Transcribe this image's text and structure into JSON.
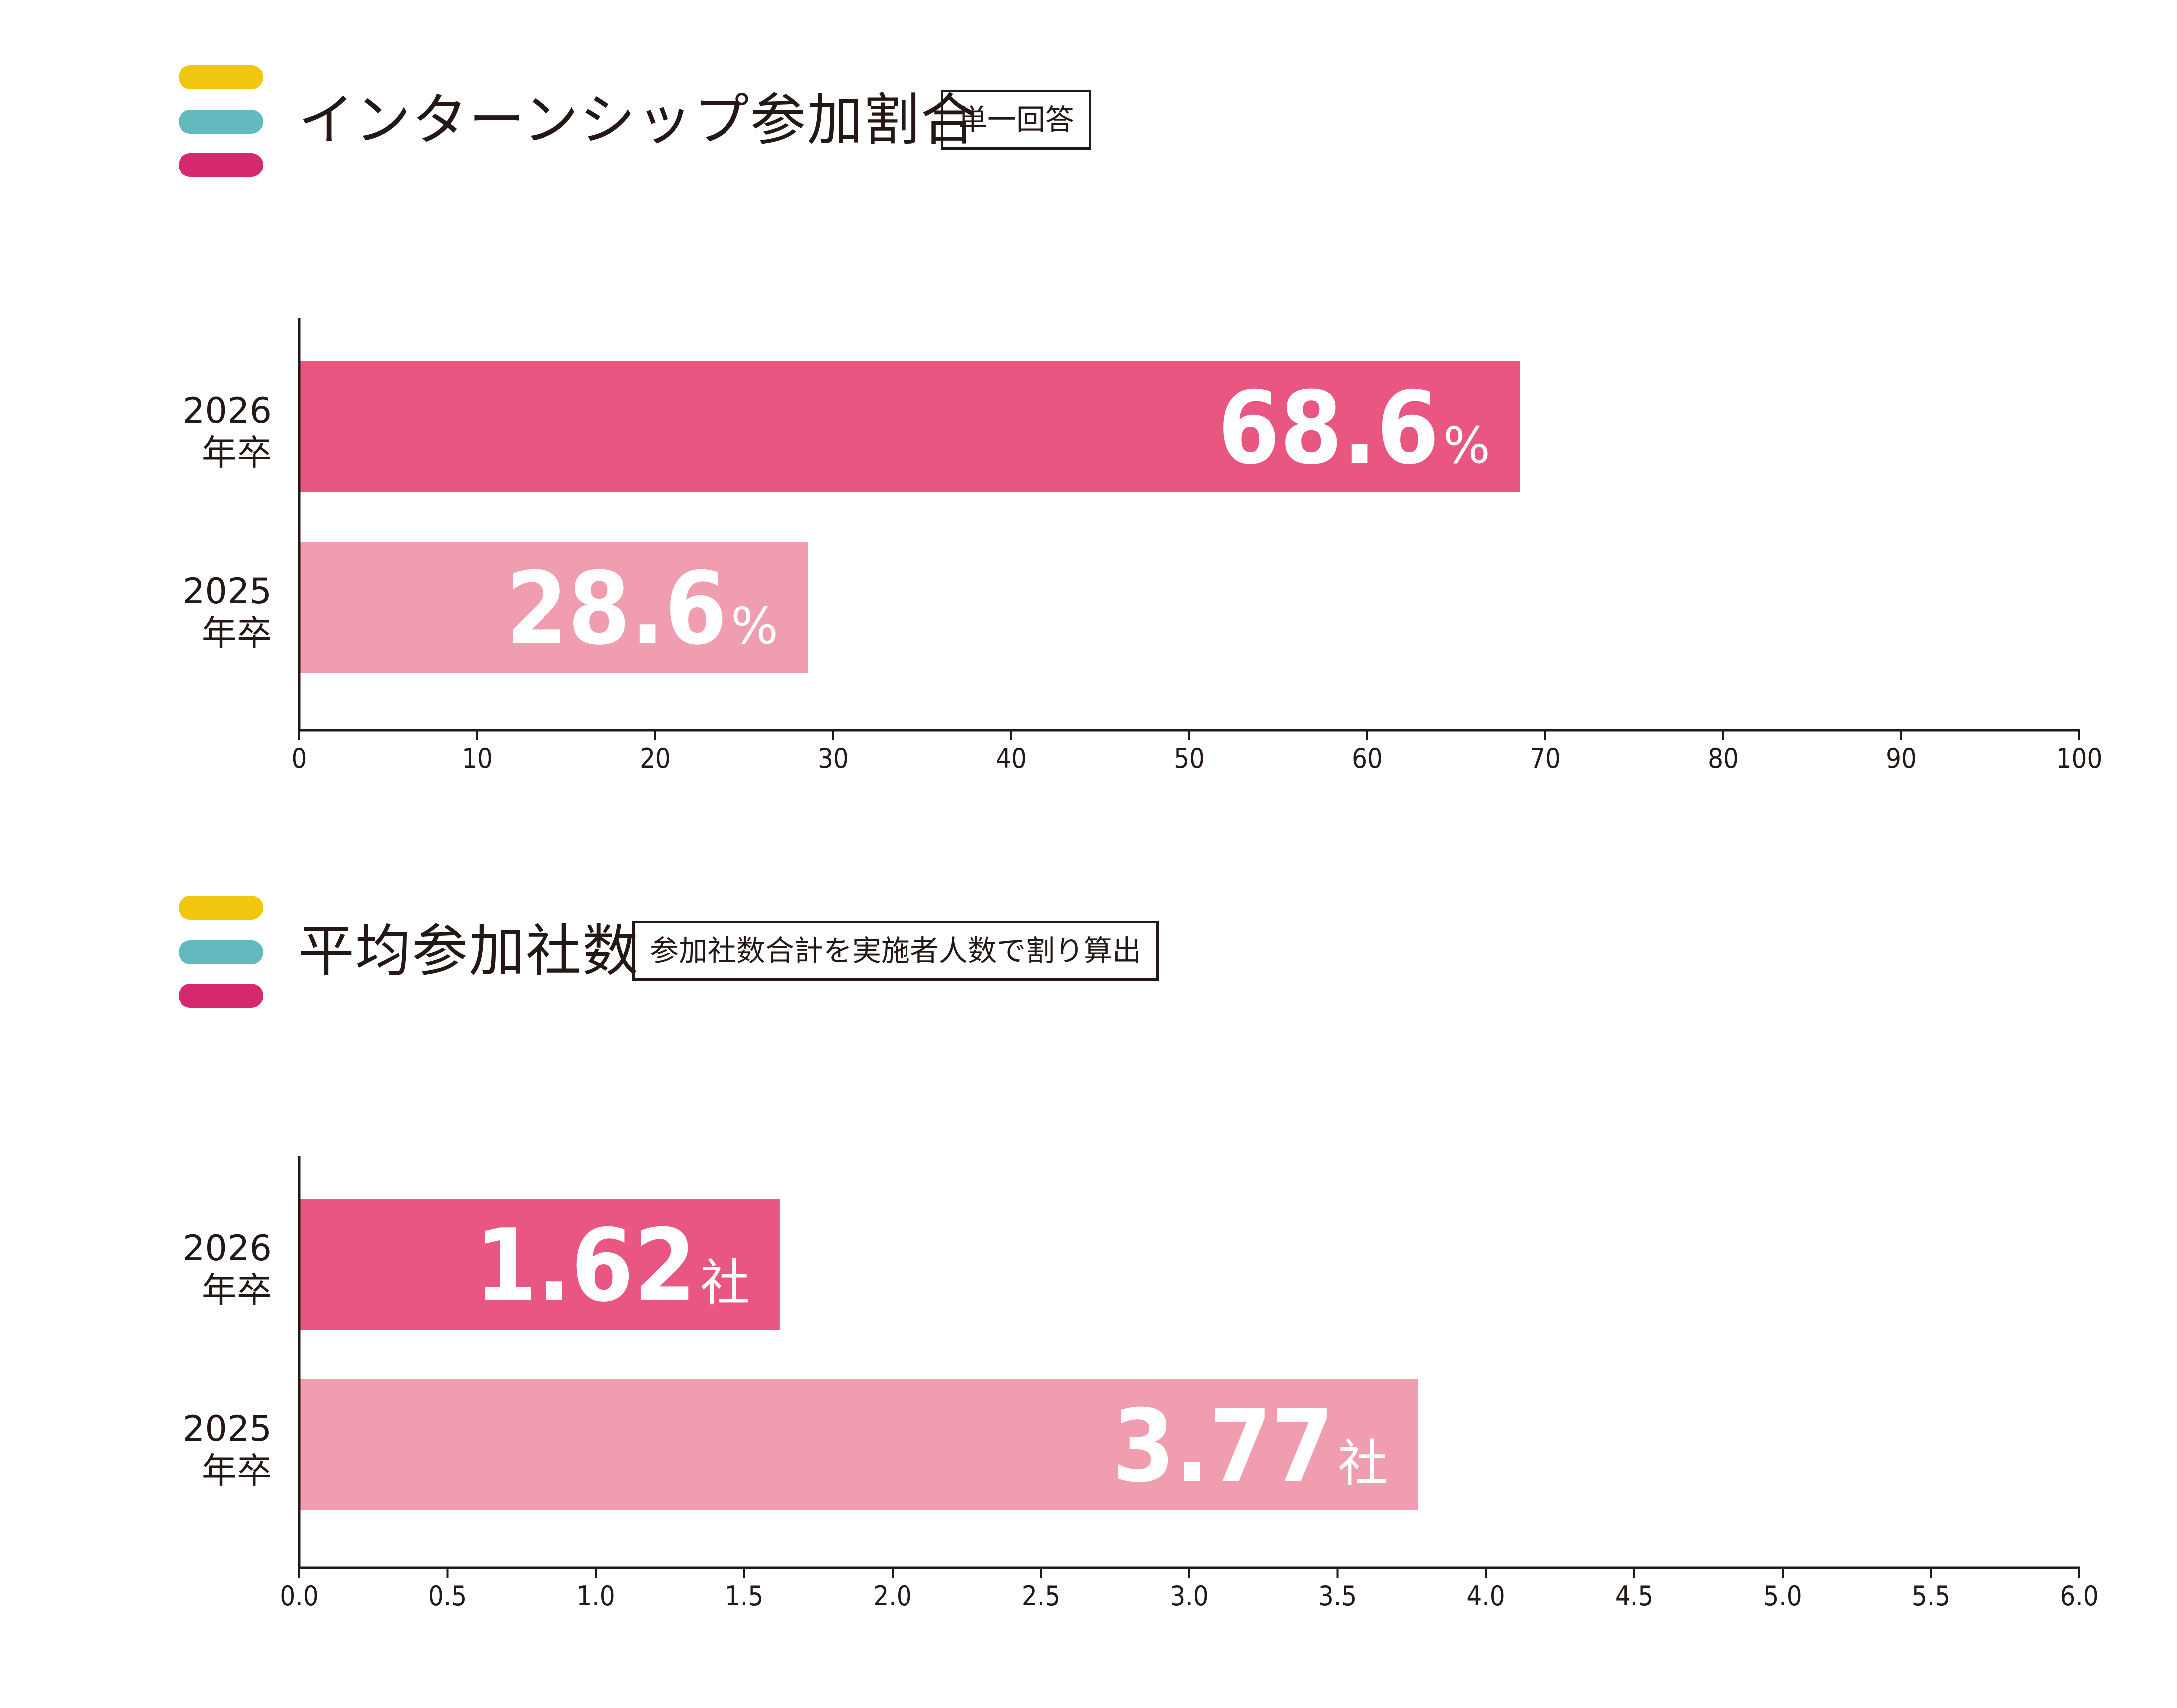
{
  "colors": {
    "pill_yellow": "#f0c70e",
    "pill_teal": "#64b9be",
    "pill_magenta": "#d6286c",
    "bar_2026": "#e95681",
    "bar_2025": "#f19db0",
    "axis": "#231815"
  },
  "sections": [
    {
      "title": "インターンシップ参加割合",
      "note": "単一回答"
    },
    {
      "title": "平均参加社数",
      "note": "参加社数合計を実施者人数で割り算出"
    }
  ],
  "chart_data": [
    {
      "type": "bar",
      "orientation": "horizontal",
      "title": "インターンシップ参加割合",
      "categories": [
        {
          "year": "2026",
          "suffix": "年卒"
        },
        {
          "year": "2025",
          "suffix": "年卒"
        }
      ],
      "values": [
        68.6,
        28.6
      ],
      "value_labels": [
        "68.6",
        "28.6"
      ],
      "unit": "%",
      "xlim": [
        0,
        100
      ],
      "ticks": [
        "0",
        "10",
        "20",
        "30",
        "40",
        "50",
        "60",
        "70",
        "80",
        "90",
        "100"
      ],
      "grid": false,
      "legend": "none"
    },
    {
      "type": "bar",
      "orientation": "horizontal",
      "title": "平均参加社数",
      "categories": [
        {
          "year": "2026",
          "suffix": "年卒"
        },
        {
          "year": "2025",
          "suffix": "年卒"
        }
      ],
      "values": [
        1.62,
        3.77
      ],
      "value_labels": [
        "1.62",
        "3.77"
      ],
      "unit": "社",
      "xlim": [
        0,
        6
      ],
      "ticks": [
        "0.0",
        "0.5",
        "1.0",
        "1.5",
        "2.0",
        "2.5",
        "3.0",
        "3.5",
        "4.0",
        "4.5",
        "5.0",
        "5.5",
        "6.0"
      ],
      "grid": false,
      "legend": "none"
    }
  ]
}
